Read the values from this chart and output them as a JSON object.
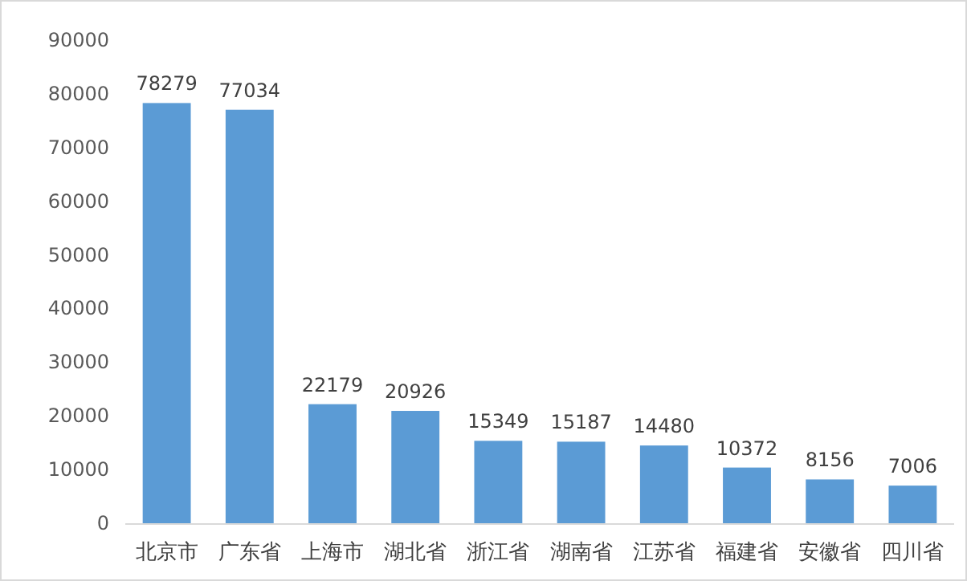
{
  "chart_data": {
    "type": "bar",
    "categories": [
      "北京市",
      "广东省",
      "上海市",
      "湖北省",
      "浙江省",
      "湖南省",
      "江苏省",
      "福建省",
      "安徽省",
      "四川省"
    ],
    "values": [
      78279,
      77034,
      22179,
      20926,
      15349,
      15187,
      14480,
      10372,
      8156,
      7006
    ],
    "color": "#5b9bd5",
    "ylim": [
      0,
      90000
    ],
    "yticks": [
      0,
      10000,
      20000,
      30000,
      40000,
      50000,
      60000,
      70000,
      80000,
      90000
    ],
    "data_labels": true,
    "grid": false
  }
}
